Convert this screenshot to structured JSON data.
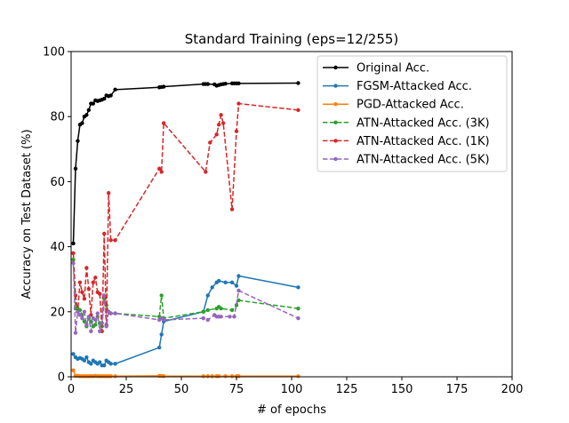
{
  "chart_data": {
    "type": "line",
    "title": "Standard Training (eps=12/255)",
    "xlabel": "# of epochs",
    "ylabel": "Accuracy on Test Dataset (%)",
    "xlim": [
      0,
      200
    ],
    "ylim": [
      0,
      100
    ],
    "xticks": [
      "0",
      "25",
      "50",
      "75",
      "100",
      "125",
      "150",
      "175",
      "200"
    ],
    "yticks": [
      "0",
      "20",
      "40",
      "60",
      "80",
      "100"
    ],
    "legend_position": "top-right",
    "series": [
      {
        "name": "Original Acc.",
        "color": "#000000",
        "dash": "solid",
        "x": [
          1,
          2,
          3,
          4,
          5,
          6,
          7,
          8,
          9,
          10,
          11,
          12,
          13,
          14,
          15,
          16,
          17,
          18,
          20,
          40,
          41,
          42,
          60,
          61,
          62,
          65,
          66,
          67,
          68,
          69,
          70,
          73,
          74,
          75,
          76,
          103
        ],
        "y": [
          41,
          64,
          72.5,
          77.5,
          78,
          80,
          80.5,
          82,
          84,
          84,
          85,
          84.8,
          85,
          85.2,
          85.5,
          86.5,
          86.3,
          86.5,
          88.3,
          89,
          89.1,
          89.2,
          90,
          90,
          90,
          89.9,
          89.5,
          89.7,
          89.9,
          90,
          90.1,
          90.2,
          90.2,
          90.2,
          90.2,
          90.3
        ]
      },
      {
        "name": "FGSM-Attacked Acc.",
        "color": "#1f77b4",
        "dash": "solid",
        "x": [
          1,
          2,
          3,
          4,
          5,
          6,
          7,
          8,
          9,
          10,
          11,
          12,
          13,
          14,
          15,
          16,
          17,
          18,
          20,
          40,
          41,
          42,
          60,
          62,
          64,
          66,
          67,
          70,
          73,
          75,
          76,
          103
        ],
        "y": [
          7,
          6,
          5.5,
          5.8,
          5.5,
          5,
          6,
          4.5,
          4,
          5,
          4.5,
          4,
          4.5,
          3.5,
          3.5,
          5,
          4.5,
          4,
          4,
          9,
          13,
          17,
          20,
          25,
          27.5,
          29,
          29.5,
          29,
          29,
          28,
          31,
          27.5
        ]
      },
      {
        "name": "PGD-Attacked Acc.",
        "color": "#ff7f0e",
        "dash": "solid",
        "x": [
          1,
          2,
          3,
          4,
          5,
          6,
          7,
          8,
          9,
          10,
          11,
          12,
          13,
          14,
          15,
          16,
          17,
          18,
          20,
          40,
          41,
          42,
          60,
          62,
          64,
          66,
          67,
          70,
          73,
          75,
          76,
          103
        ],
        "y": [
          2,
          0.3,
          0.3,
          0.2,
          0.2,
          0.2,
          0.2,
          0.2,
          0.2,
          0.2,
          0.3,
          0.2,
          0.2,
          0.2,
          0.2,
          0.2,
          0.2,
          0.2,
          0.2,
          0.3,
          0.3,
          0.2,
          0.2,
          0.2,
          0.2,
          0.2,
          0.2,
          0.2,
          0.2,
          0.2,
          0.2,
          0.2
        ]
      },
      {
        "name": "ATN-Attacked Acc. (3K)",
        "color": "#2ca02c",
        "dash": "dashed",
        "x": [
          1,
          2,
          3,
          4,
          5,
          6,
          7,
          8,
          9,
          10,
          11,
          12,
          13,
          14,
          15,
          16,
          17,
          18,
          20,
          40,
          41,
          42,
          60,
          62,
          66,
          67,
          68,
          73,
          75,
          76,
          103
        ],
        "y": [
          36,
          21,
          21,
          20.5,
          19,
          17,
          15.5,
          18,
          17,
          15.5,
          16,
          18.5,
          16.5,
          15.5,
          24,
          22,
          20,
          19.5,
          19.5,
          18.5,
          25,
          18,
          20,
          20.5,
          21,
          21.5,
          21,
          20.5,
          22,
          23.5,
          21
        ]
      },
      {
        "name": "ATN-Attacked Acc. (1K)",
        "color": "#d62728",
        "dash": "dashed",
        "x": [
          1,
          2,
          3,
          4,
          5,
          6,
          7,
          8,
          9,
          10,
          11,
          12,
          13,
          14,
          15,
          16,
          17,
          18,
          20,
          40,
          41,
          42,
          61,
          63,
          66,
          67,
          68,
          69,
          73,
          75,
          76,
          103
        ],
        "y": [
          38,
          25,
          20,
          29,
          26,
          24,
          33.5,
          27,
          19,
          29,
          30.5,
          26,
          25.5,
          14,
          44,
          16,
          56.5,
          42,
          42,
          64,
          63,
          78,
          63,
          72,
          74.5,
          77.5,
          80.5,
          78,
          51.5,
          75.5,
          84,
          82
        ]
      },
      {
        "name": "ATN-Attacked Acc. (5K)",
        "color": "#9467bd",
        "dash": "dashed",
        "x": [
          1,
          2,
          3,
          4,
          5,
          6,
          7,
          8,
          9,
          10,
          11,
          12,
          13,
          14,
          15,
          16,
          17,
          18,
          20,
          40,
          41,
          42,
          60,
          62,
          65,
          66,
          67,
          68,
          72,
          74,
          76,
          103
        ],
        "y": [
          35,
          13.5,
          20,
          19,
          18,
          20,
          16,
          18.5,
          14,
          18,
          17.5,
          19.5,
          14,
          16.5,
          25,
          15.5,
          20,
          19.5,
          19.5,
          17.5,
          18,
          17.5,
          18,
          17.5,
          19,
          18.5,
          18.5,
          18.5,
          18.5,
          18.5,
          26.5,
          18
        ]
      }
    ]
  }
}
